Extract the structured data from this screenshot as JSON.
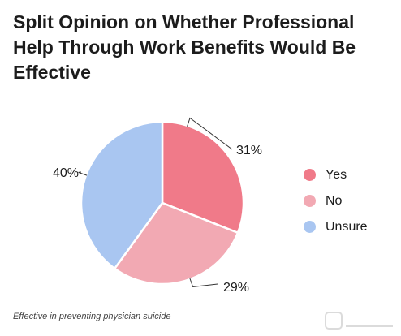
{
  "chart_data": {
    "type": "pie",
    "title": "Split Opinion on Whether Professional Help Through Work Benefits Would Be Effective",
    "categories": [
      "Yes",
      "No",
      "Unsure"
    ],
    "values": [
      31,
      29,
      40
    ],
    "value_labels": [
      "31%",
      "29%",
      "40%"
    ],
    "colors": [
      "#f07a89",
      "#f2a9b3",
      "#a9c6f1"
    ],
    "legend_position": "right",
    "start_angle": "12 o'clock",
    "direction": "clockwise"
  },
  "footnote": "Effective in preventing physician suicide"
}
